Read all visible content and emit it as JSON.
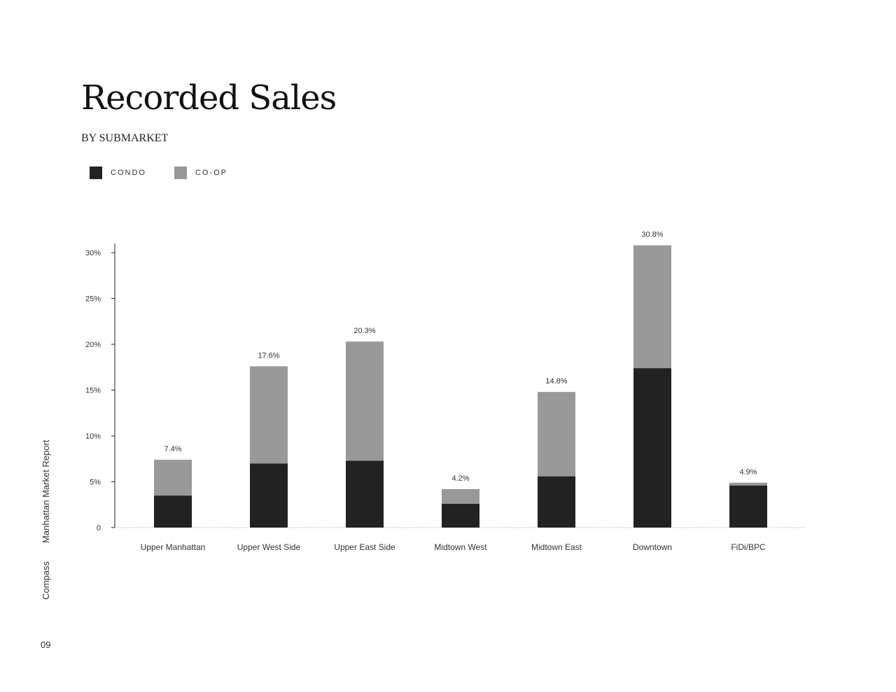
{
  "header": {
    "title": "Recorded Sales",
    "subtitle": "BY SUBMARKET"
  },
  "legend": [
    {
      "label": "CONDO",
      "color": "#222222"
    },
    {
      "label": "CO-OP",
      "color": "#999999"
    }
  ],
  "sidebar": {
    "brand": "Compass",
    "report": "Manhattan Market Report",
    "page_number": "09"
  },
  "chart_data": {
    "type": "bar",
    "stacked": true,
    "categories": [
      "Upper Manhattan",
      "Upper West Side",
      "Upper East Side",
      "Midtown West",
      "Midtown East",
      "Downtown",
      "FiDi/BPC"
    ],
    "series": [
      {
        "name": "CONDO",
        "color": "#222222",
        "values": [
          3.5,
          7.0,
          7.3,
          2.6,
          5.6,
          17.4,
          4.6
        ]
      },
      {
        "name": "CO-OP",
        "color": "#999999",
        "values": [
          3.9,
          10.6,
          13.0,
          1.6,
          9.2,
          13.4,
          0.3
        ]
      }
    ],
    "totals": [
      7.4,
      17.6,
      20.3,
      4.2,
      14.8,
      30.8,
      4.9
    ],
    "total_labels": [
      "7.4%",
      "17.6%",
      "20.3%",
      "4.2%",
      "14.8%",
      "30.8%",
      "4.9%"
    ],
    "ylim": [
      0,
      31
    ],
    "yticks": [
      0,
      5,
      10,
      15,
      20,
      25,
      30
    ],
    "ytick_labels": [
      "0",
      "5%",
      "10%",
      "15%",
      "20%",
      "25%",
      "30%"
    ],
    "grid": false,
    "legend_position": "top-left"
  }
}
